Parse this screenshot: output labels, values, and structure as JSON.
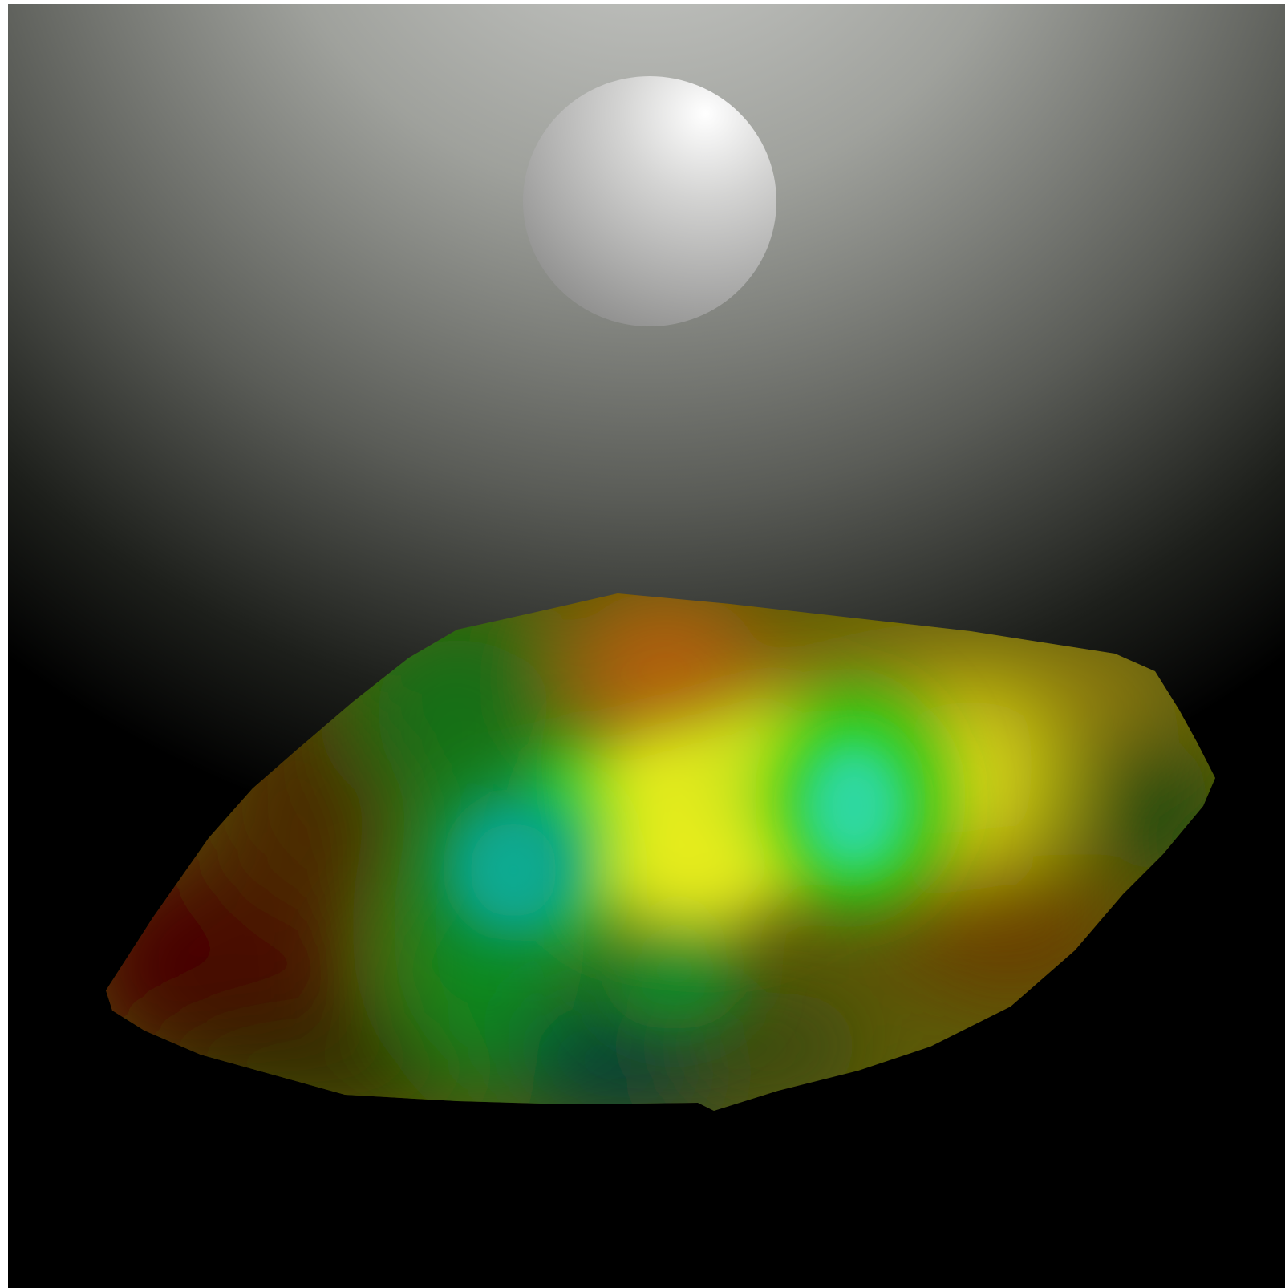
{
  "scene": {
    "background": {
      "top_color": "#c7c8c6",
      "mid_color": "#6b6d68",
      "bottom_color": "#000000"
    },
    "sphere": {
      "highlight_color": "#ffffff",
      "base_color": "#b9b9b8",
      "shadow_color": "#8c8c8b"
    },
    "terrain": {
      "colormap": [
        "#5a0000",
        "#6b3a00",
        "#1f6b12",
        "#0cd41a",
        "#1fd6a0",
        "#e8ef1a",
        "#c8620a"
      ]
    }
  }
}
